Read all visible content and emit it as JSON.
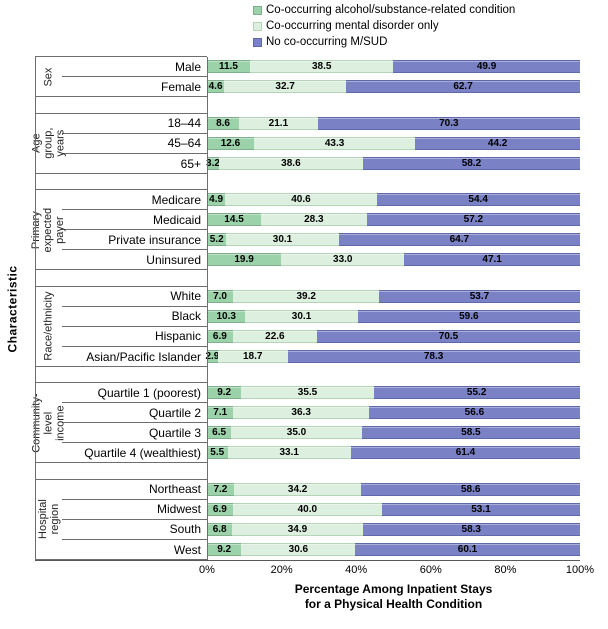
{
  "chart_data": {
    "type": "bar",
    "subtype": "horizontal-stacked",
    "orientation": "horizontal",
    "stacked": true,
    "x_axis": {
      "title": "Percentage Among Inpatient Stays\nfor a Physical Health Condition",
      "ticks": [
        "0%",
        "20%",
        "40%",
        "60%",
        "80%",
        "100%"
      ],
      "range": [
        0,
        100
      ],
      "grid": false
    },
    "y_axis": {
      "title": "Characteristic"
    },
    "legend_position": "top",
    "series": [
      {
        "name": "Co-occurring alcohol/substance-related condition",
        "color": "#9CD2A9",
        "border": "#7fae8c"
      },
      {
        "name": "Co-occurring mental disorder only",
        "color": "#DDF0DF",
        "border": "#b5d4b8"
      },
      {
        "name": "No co-occurring M/SUD",
        "color": "#7A82C5",
        "border": "#5f68a8"
      }
    ],
    "groups": [
      {
        "label": "Sex",
        "rows": [
          {
            "category": "Male",
            "values": [
              11.5,
              38.5,
              49.9
            ]
          },
          {
            "category": "Female",
            "values": [
              4.6,
              32.7,
              62.7
            ]
          }
        ]
      },
      {
        "label": "Age group,\nyears",
        "rows": [
          {
            "category": "18–44",
            "values": [
              8.6,
              21.1,
              70.3
            ]
          },
          {
            "category": "45–64",
            "values": [
              12.6,
              43.3,
              44.2
            ]
          },
          {
            "category": "65+",
            "values": [
              3.2,
              38.6,
              58.2
            ]
          }
        ]
      },
      {
        "label": "Primary\nexpected payer",
        "rows": [
          {
            "category": "Medicare",
            "values": [
              4.9,
              40.6,
              54.4
            ]
          },
          {
            "category": "Medicaid",
            "values": [
              14.5,
              28.3,
              57.2
            ]
          },
          {
            "category": "Private insurance",
            "values": [
              5.2,
              30.1,
              64.7
            ]
          },
          {
            "category": "Uninsured",
            "values": [
              19.9,
              33.0,
              47.1
            ]
          }
        ]
      },
      {
        "label": "Race/ethnicity",
        "rows": [
          {
            "category": "White",
            "values": [
              7.0,
              39.2,
              53.7
            ]
          },
          {
            "category": "Black",
            "values": [
              10.3,
              30.1,
              59.6
            ]
          },
          {
            "category": "Hispanic",
            "values": [
              6.9,
              22.6,
              70.5
            ]
          },
          {
            "category": "Asian/Pacific Islander",
            "values": [
              2.9,
              18.7,
              78.3
            ]
          }
        ]
      },
      {
        "label": "Community-\nlevel income",
        "rows": [
          {
            "category": "Quartile 1 (poorest)",
            "values": [
              9.2,
              35.5,
              55.2
            ]
          },
          {
            "category": "Quartile 2",
            "values": [
              7.1,
              36.3,
              56.6
            ]
          },
          {
            "category": "Quartile 3",
            "values": [
              6.5,
              35.0,
              58.5
            ]
          },
          {
            "category": "Quartile 4 (wealthiest)",
            "values": [
              5.5,
              33.1,
              61.4
            ]
          }
        ]
      },
      {
        "label": "Hospital\nregion",
        "rows": [
          {
            "category": "Northeast",
            "values": [
              7.2,
              34.2,
              58.6
            ]
          },
          {
            "category": "Midwest",
            "values": [
              6.9,
              40.0,
              53.1
            ]
          },
          {
            "category": "South",
            "values": [
              6.8,
              34.9,
              58.3
            ]
          },
          {
            "category": "West",
            "values": [
              9.2,
              30.6,
              60.1
            ]
          }
        ]
      }
    ]
  }
}
